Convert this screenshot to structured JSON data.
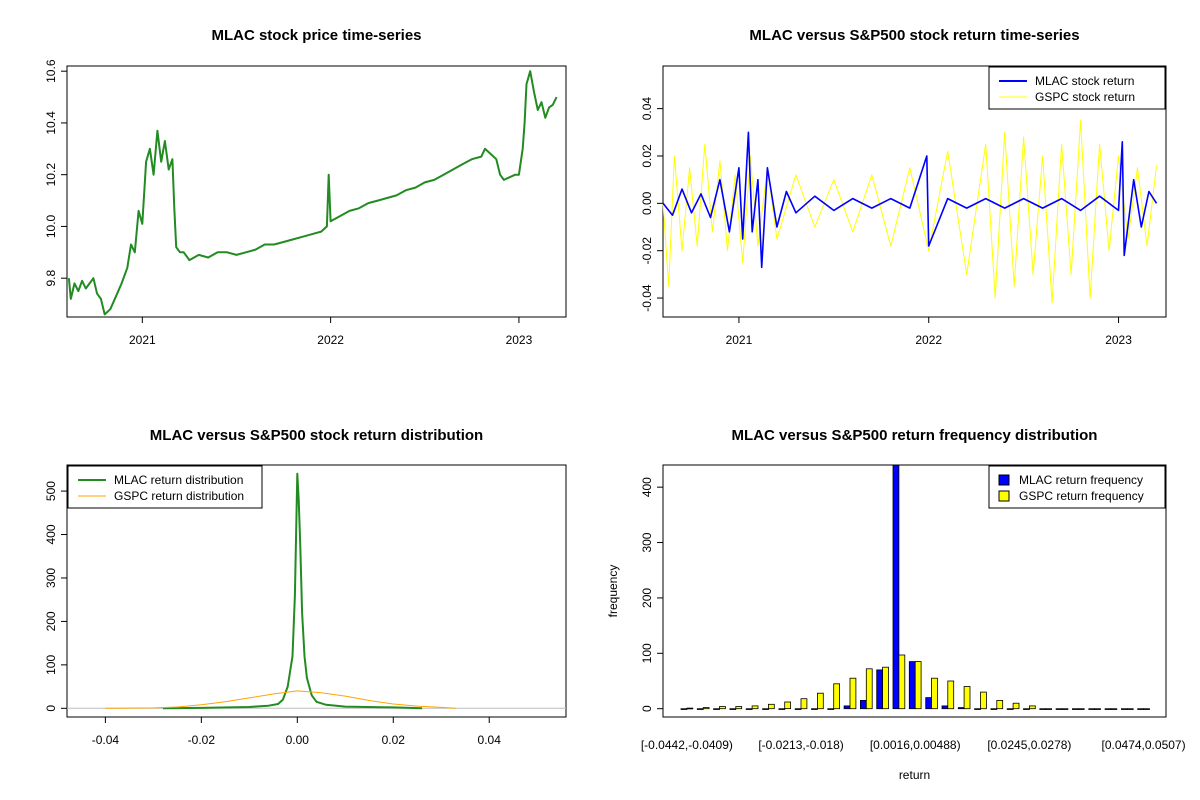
{
  "chart_data": [
    {
      "id": "price",
      "type": "line",
      "title": "MLAC stock price time-series",
      "xlabel": "",
      "ylabel": "",
      "xlim": [
        2020.6,
        2023.25
      ],
      "ylim": [
        9.65,
        10.62
      ],
      "x_ticks": [
        2021,
        2022,
        2023
      ],
      "x_tick_labels": [
        "2021",
        "2022",
        "2023"
      ],
      "y_ticks": [
        9.8,
        10.0,
        10.2,
        10.4,
        10.6
      ],
      "y_tick_labels": [
        "9.8",
        "10.0",
        "10.2",
        "10.4",
        "10.6"
      ],
      "series": [
        {
          "name": "MLAC stock price",
          "color": "#228B22",
          "points": [
            [
              2020.61,
              9.8
            ],
            [
              2020.62,
              9.72
            ],
            [
              2020.64,
              9.78
            ],
            [
              2020.66,
              9.75
            ],
            [
              2020.68,
              9.79
            ],
            [
              2020.7,
              9.76
            ],
            [
              2020.72,
              9.78
            ],
            [
              2020.74,
              9.8
            ],
            [
              2020.76,
              9.74
            ],
            [
              2020.78,
              9.72
            ],
            [
              2020.8,
              9.66
            ],
            [
              2020.83,
              9.68
            ],
            [
              2020.86,
              9.73
            ],
            [
              2020.89,
              9.78
            ],
            [
              2020.92,
              9.84
            ],
            [
              2020.94,
              9.93
            ],
            [
              2020.96,
              9.9
            ],
            [
              2020.98,
              10.06
            ],
            [
              2021.0,
              10.01
            ],
            [
              2021.02,
              10.25
            ],
            [
              2021.04,
              10.3
            ],
            [
              2021.06,
              10.2
            ],
            [
              2021.08,
              10.37
            ],
            [
              2021.1,
              10.25
            ],
            [
              2021.12,
              10.33
            ],
            [
              2021.14,
              10.22
            ],
            [
              2021.16,
              10.26
            ],
            [
              2021.17,
              10.07
            ],
            [
              2021.18,
              9.92
            ],
            [
              2021.2,
              9.9
            ],
            [
              2021.22,
              9.9
            ],
            [
              2021.25,
              9.87
            ],
            [
              2021.3,
              9.89
            ],
            [
              2021.35,
              9.88
            ],
            [
              2021.4,
              9.9
            ],
            [
              2021.45,
              9.9
            ],
            [
              2021.5,
              9.89
            ],
            [
              2021.55,
              9.9
            ],
            [
              2021.6,
              9.91
            ],
            [
              2021.65,
              9.93
            ],
            [
              2021.7,
              9.93
            ],
            [
              2021.75,
              9.94
            ],
            [
              2021.8,
              9.95
            ],
            [
              2021.85,
              9.96
            ],
            [
              2021.9,
              9.97
            ],
            [
              2021.95,
              9.98
            ],
            [
              2021.98,
              10.0
            ],
            [
              2021.99,
              10.2
            ],
            [
              2022.0,
              10.02
            ],
            [
              2022.05,
              10.04
            ],
            [
              2022.1,
              10.06
            ],
            [
              2022.15,
              10.07
            ],
            [
              2022.2,
              10.09
            ],
            [
              2022.25,
              10.1
            ],
            [
              2022.3,
              10.11
            ],
            [
              2022.35,
              10.12
            ],
            [
              2022.4,
              10.14
            ],
            [
              2022.45,
              10.15
            ],
            [
              2022.5,
              10.17
            ],
            [
              2022.55,
              10.18
            ],
            [
              2022.6,
              10.2
            ],
            [
              2022.65,
              10.22
            ],
            [
              2022.7,
              10.24
            ],
            [
              2022.75,
              10.26
            ],
            [
              2022.8,
              10.27
            ],
            [
              2022.82,
              10.3
            ],
            [
              2022.85,
              10.28
            ],
            [
              2022.88,
              10.26
            ],
            [
              2022.9,
              10.2
            ],
            [
              2022.92,
              10.18
            ],
            [
              2022.95,
              10.19
            ],
            [
              2022.98,
              10.2
            ],
            [
              2023.0,
              10.2
            ],
            [
              2023.02,
              10.3
            ],
            [
              2023.03,
              10.4
            ],
            [
              2023.04,
              10.55
            ],
            [
              2023.06,
              10.6
            ],
            [
              2023.08,
              10.52
            ],
            [
              2023.1,
              10.45
            ],
            [
              2023.12,
              10.48
            ],
            [
              2023.14,
              10.42
            ],
            [
              2023.16,
              10.46
            ],
            [
              2023.18,
              10.47
            ],
            [
              2023.2,
              10.5
            ]
          ]
        }
      ]
    },
    {
      "id": "returns",
      "type": "line",
      "title": "MLAC versus S&P500 stock return time-series",
      "xlabel": "",
      "ylabel": "",
      "xlim": [
        2020.6,
        2023.25
      ],
      "ylim": [
        -0.048,
        0.058
      ],
      "x_ticks": [
        2021,
        2022,
        2023
      ],
      "x_tick_labels": [
        "2021",
        "2022",
        "2023"
      ],
      "y_ticks": [
        -0.04,
        -0.02,
        0.0,
        0.02,
        0.04
      ],
      "y_tick_labels": [
        "-0.04",
        "-0.02",
        "0.00",
        "0.02",
        "0.04"
      ],
      "legend_position": "top-right",
      "series": [
        {
          "name": "MLAC stock return",
          "color": "#0000FF",
          "points": [
            [
              2020.6,
              0.0
            ],
            [
              2020.65,
              -0.005
            ],
            [
              2020.7,
              0.006
            ],
            [
              2020.75,
              -0.004
            ],
            [
              2020.8,
              0.004
            ],
            [
              2020.85,
              -0.006
            ],
            [
              2020.9,
              0.01
            ],
            [
              2020.95,
              -0.012
            ],
            [
              2021.0,
              0.015
            ],
            [
              2021.02,
              -0.015
            ],
            [
              2021.05,
              0.03
            ],
            [
              2021.07,
              -0.012
            ],
            [
              2021.1,
              0.01
            ],
            [
              2021.12,
              -0.027
            ],
            [
              2021.15,
              0.015
            ],
            [
              2021.2,
              -0.01
            ],
            [
              2021.25,
              0.005
            ],
            [
              2021.3,
              -0.004
            ],
            [
              2021.4,
              0.003
            ],
            [
              2021.5,
              -0.003
            ],
            [
              2021.6,
              0.002
            ],
            [
              2021.7,
              -0.002
            ],
            [
              2021.8,
              0.002
            ],
            [
              2021.9,
              -0.002
            ],
            [
              2021.99,
              0.02
            ],
            [
              2022.0,
              -0.018
            ],
            [
              2022.1,
              0.002
            ],
            [
              2022.2,
              -0.002
            ],
            [
              2022.3,
              0.002
            ],
            [
              2022.4,
              -0.002
            ],
            [
              2022.5,
              0.002
            ],
            [
              2022.6,
              -0.002
            ],
            [
              2022.7,
              0.002
            ],
            [
              2022.8,
              -0.003
            ],
            [
              2022.9,
              0.003
            ],
            [
              2023.0,
              -0.003
            ],
            [
              2023.02,
              0.026
            ],
            [
              2023.03,
              -0.022
            ],
            [
              2023.08,
              0.01
            ],
            [
              2023.12,
              -0.01
            ],
            [
              2023.16,
              0.005
            ],
            [
              2023.2,
              0.0
            ]
          ]
        },
        {
          "name": "GSPC stock return",
          "color": "#FFFF00",
          "points": [
            [
              2020.6,
              0.0
            ],
            [
              2020.63,
              -0.035
            ],
            [
              2020.66,
              0.02
            ],
            [
              2020.7,
              -0.02
            ],
            [
              2020.74,
              0.015
            ],
            [
              2020.78,
              -0.018
            ],
            [
              2020.82,
              0.025
            ],
            [
              2020.86,
              -0.012
            ],
            [
              2020.9,
              0.018
            ],
            [
              2020.94,
              -0.02
            ],
            [
              2020.98,
              0.012
            ],
            [
              2021.02,
              -0.025
            ],
            [
              2021.06,
              0.02
            ],
            [
              2021.1,
              -0.018
            ],
            [
              2021.15,
              0.015
            ],
            [
              2021.2,
              -0.015
            ],
            [
              2021.3,
              0.012
            ],
            [
              2021.4,
              -0.01
            ],
            [
              2021.5,
              0.01
            ],
            [
              2021.6,
              -0.012
            ],
            [
              2021.7,
              0.012
            ],
            [
              2021.8,
              -0.018
            ],
            [
              2021.9,
              0.015
            ],
            [
              2022.0,
              -0.02
            ],
            [
              2022.1,
              0.022
            ],
            [
              2022.2,
              -0.03
            ],
            [
              2022.3,
              0.025
            ],
            [
              2022.35,
              -0.04
            ],
            [
              2022.4,
              0.03
            ],
            [
              2022.45,
              -0.035
            ],
            [
              2022.5,
              0.028
            ],
            [
              2022.55,
              -0.03
            ],
            [
              2022.6,
              0.02
            ],
            [
              2022.65,
              -0.042
            ],
            [
              2022.7,
              0.025
            ],
            [
              2022.75,
              -0.03
            ],
            [
              2022.8,
              0.035
            ],
            [
              2022.85,
              -0.04
            ],
            [
              2022.9,
              0.025
            ],
            [
              2022.95,
              -0.02
            ],
            [
              2023.0,
              0.02
            ],
            [
              2023.05,
              -0.015
            ],
            [
              2023.1,
              0.015
            ],
            [
              2023.15,
              -0.018
            ],
            [
              2023.2,
              0.016
            ]
          ]
        }
      ]
    },
    {
      "id": "density",
      "type": "line",
      "title": "MLAC versus S&P500 stock return distribution",
      "xlabel": "",
      "ylabel": "",
      "xlim": [
        -0.048,
        0.056
      ],
      "ylim": [
        -20,
        560
      ],
      "x_ticks": [
        -0.04,
        -0.02,
        0.0,
        0.02,
        0.04
      ],
      "x_tick_labels": [
        "-0.04",
        "-0.02",
        "0.00",
        "0.02",
        "0.04"
      ],
      "y_ticks": [
        0,
        100,
        200,
        300,
        400,
        500
      ],
      "y_tick_labels": [
        "0",
        "100",
        "200",
        "300",
        "400",
        "500"
      ],
      "legend_position": "top-left",
      "series": [
        {
          "name": "MLAC return distribution",
          "color": "#228B22",
          "points": [
            [
              -0.028,
              0
            ],
            [
              -0.02,
              1
            ],
            [
              -0.01,
              3
            ],
            [
              -0.006,
              6
            ],
            [
              -0.004,
              10
            ],
            [
              -0.003,
              20
            ],
            [
              -0.002,
              50
            ],
            [
              -0.001,
              120
            ],
            [
              -0.0005,
              260
            ],
            [
              0.0,
              540
            ],
            [
              0.0003,
              480
            ],
            [
              0.0006,
              380
            ],
            [
              0.001,
              220
            ],
            [
              0.0015,
              120
            ],
            [
              0.002,
              70
            ],
            [
              0.003,
              30
            ],
            [
              0.004,
              15
            ],
            [
              0.006,
              8
            ],
            [
              0.01,
              4
            ],
            [
              0.02,
              2
            ],
            [
              0.026,
              0
            ]
          ]
        },
        {
          "name": "GSPC return distribution",
          "color": "#FFA500",
          "points": [
            [
              -0.04,
              0
            ],
            [
              -0.03,
              1
            ],
            [
              -0.025,
              3
            ],
            [
              -0.02,
              8
            ],
            [
              -0.015,
              15
            ],
            [
              -0.01,
              24
            ],
            [
              -0.005,
              33
            ],
            [
              0.0,
              40
            ],
            [
              0.005,
              36
            ],
            [
              0.01,
              28
            ],
            [
              0.015,
              18
            ],
            [
              0.02,
              10
            ],
            [
              0.025,
              5
            ],
            [
              0.03,
              2
            ],
            [
              0.033,
              0
            ]
          ]
        }
      ]
    },
    {
      "id": "hist",
      "type": "bar",
      "title": "MLAC versus S&P500 return frequency distribution",
      "xlabel": "return",
      "ylabel": "frequency",
      "ylim": [
        -15,
        440
      ],
      "y_ticks": [
        0,
        100,
        200,
        300,
        400
      ],
      "y_tick_labels": [
        "0",
        "100",
        "200",
        "300",
        "400"
      ],
      "x_tick_labels": [
        "[-0.0442,-0.0409)",
        "[-0.0213,-0.018)",
        "[0.0016,0.00488)",
        "[0.0245,0.0278)",
        "[0.0474,0.0507)"
      ],
      "x_tick_bin_index": [
        0,
        7,
        14,
        21,
        28
      ],
      "legend_position": "top-right",
      "bin_count": 29,
      "series": [
        {
          "name": "MLAC return frequency",
          "color": "#0000FF",
          "values": [
            0,
            0,
            0,
            0,
            0,
            0,
            0,
            0,
            0,
            0,
            5,
            15,
            70,
            440,
            85,
            20,
            5,
            2,
            0,
            0,
            0,
            0,
            0,
            0,
            0,
            0,
            0,
            0,
            0
          ]
        },
        {
          "name": "GSPC return frequency",
          "color": "#FFFF00",
          "values": [
            1,
            2,
            4,
            4,
            5,
            8,
            12,
            18,
            28,
            45,
            55,
            72,
            75,
            97,
            85,
            55,
            50,
            40,
            30,
            15,
            10,
            5,
            0,
            0,
            0,
            0,
            0,
            0,
            0
          ]
        }
      ]
    }
  ]
}
